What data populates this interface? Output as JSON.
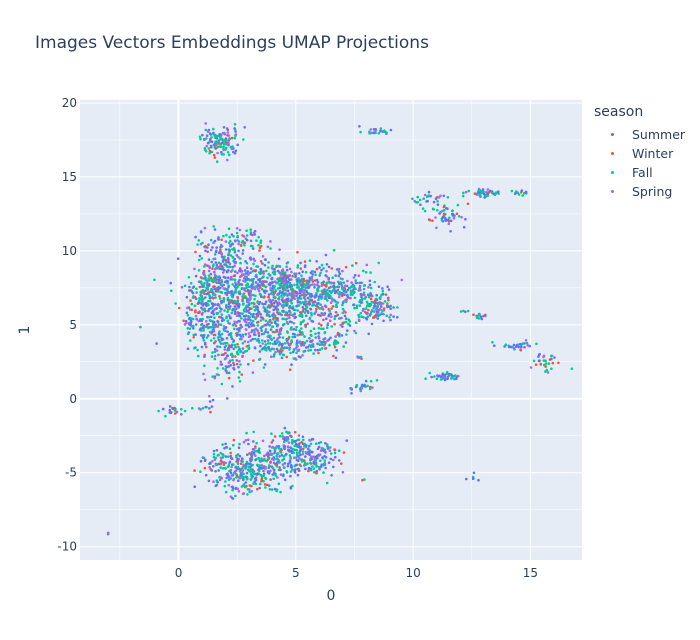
{
  "chart_data": {
    "type": "scatter",
    "title": "Images Vectors Embeddings UMAP Projections",
    "xlabel": "0",
    "ylabel": "1",
    "xlim": [
      -4.2,
      17.2
    ],
    "ylim": [
      -10.9,
      20.2
    ],
    "xticks": [
      0,
      5,
      10,
      15
    ],
    "yticks": [
      -10,
      -5,
      0,
      5,
      10,
      15,
      20
    ],
    "grid": true,
    "legend_title": "season",
    "legend_position": "right",
    "series": [
      {
        "name": "Summer",
        "color": "#636efa"
      },
      {
        "name": "Winter",
        "color": "#EF553B"
      },
      {
        "name": "Fall",
        "color": "#00cc96"
      },
      {
        "name": "Spring",
        "color": "#ab63fa"
      }
    ],
    "clusters": [
      {
        "x": 2.8,
        "y": 6.2,
        "sx": 1.1,
        "sy": 1.6,
        "n": 520
      },
      {
        "x": 5.0,
        "y": 6.5,
        "sx": 1.2,
        "sy": 1.3,
        "n": 500
      },
      {
        "x": 4.5,
        "y": 8.0,
        "sx": 1.6,
        "sy": 0.6,
        "n": 260
      },
      {
        "x": 1.2,
        "y": 5.4,
        "sx": 0.5,
        "sy": 1.0,
        "n": 150
      },
      {
        "x": 1.4,
        "y": 7.4,
        "sx": 0.5,
        "sy": 0.7,
        "n": 110
      },
      {
        "x": 2.2,
        "y": 10.5,
        "sx": 0.7,
        "sy": 0.6,
        "n": 110
      },
      {
        "x": 1.8,
        "y": 9.0,
        "sx": 0.5,
        "sy": 0.5,
        "n": 70
      },
      {
        "x": 2.2,
        "y": 3.0,
        "sx": 0.6,
        "sy": 1.0,
        "n": 120
      },
      {
        "x": 4.8,
        "y": 3.6,
        "sx": 0.8,
        "sy": 0.4,
        "n": 130
      },
      {
        "x": 7.0,
        "y": 7.3,
        "sx": 0.8,
        "sy": 0.4,
        "n": 140
      },
      {
        "x": 8.4,
        "y": 6.2,
        "sx": 0.4,
        "sy": 0.5,
        "n": 110
      },
      {
        "x": 7.0,
        "y": 5.2,
        "sx": 0.6,
        "sy": 0.5,
        "n": 40
      },
      {
        "x": 6.5,
        "y": 4.0,
        "sx": 0.4,
        "sy": 0.4,
        "n": 30
      },
      {
        "x": 1.8,
        "y": 17.4,
        "sx": 0.45,
        "sy": 0.5,
        "n": 130
      },
      {
        "x": 8.3,
        "y": 18.1,
        "sx": 0.25,
        "sy": 0.1,
        "n": 22
      },
      {
        "x": 10.6,
        "y": 13.5,
        "sx": 0.3,
        "sy": 0.2,
        "n": 22
      },
      {
        "x": 11.4,
        "y": 12.5,
        "sx": 0.4,
        "sy": 0.5,
        "n": 55
      },
      {
        "x": 13.1,
        "y": 13.9,
        "sx": 0.4,
        "sy": 0.1,
        "n": 45
      },
      {
        "x": 14.5,
        "y": 13.9,
        "sx": 0.15,
        "sy": 0.1,
        "n": 12
      },
      {
        "x": 12.9,
        "y": 5.6,
        "sx": 0.2,
        "sy": 0.1,
        "n": 14
      },
      {
        "x": 12.1,
        "y": 5.9,
        "sx": 0.1,
        "sy": 0.05,
        "n": 4
      },
      {
        "x": 14.4,
        "y": 3.6,
        "sx": 0.4,
        "sy": 0.15,
        "n": 30
      },
      {
        "x": 15.7,
        "y": 2.4,
        "sx": 0.25,
        "sy": 0.4,
        "n": 30
      },
      {
        "x": 11.5,
        "y": 1.5,
        "sx": 0.35,
        "sy": 0.15,
        "n": 40
      },
      {
        "x": 7.8,
        "y": 0.8,
        "sx": 0.35,
        "sy": 0.2,
        "n": 24
      },
      {
        "x": 7.7,
        "y": 2.8,
        "sx": 0.1,
        "sy": 0.05,
        "n": 5
      },
      {
        "x": -0.3,
        "y": -0.8,
        "sx": 0.3,
        "sy": 0.2,
        "n": 18
      },
      {
        "x": 1.3,
        "y": -0.3,
        "sx": 0.15,
        "sy": 0.25,
        "n": 8
      },
      {
        "x": 0.9,
        "y": -0.7,
        "sx": 0.15,
        "sy": 0.05,
        "n": 5
      },
      {
        "x": 3.5,
        "y": -4.3,
        "sx": 1.2,
        "sy": 0.8,
        "n": 360
      },
      {
        "x": 5.4,
        "y": -3.5,
        "sx": 0.7,
        "sy": 0.5,
        "n": 110
      },
      {
        "x": 2.7,
        "y": -5.5,
        "sx": 0.6,
        "sy": 0.6,
        "n": 110
      },
      {
        "x": 6.0,
        "y": -4.4,
        "sx": 0.5,
        "sy": 0.3,
        "n": 40
      },
      {
        "x": 4.6,
        "y": -2.5,
        "sx": 0.2,
        "sy": 0.3,
        "n": 15
      },
      {
        "x": 1.5,
        "y": -4.4,
        "sx": 0.2,
        "sy": 0.2,
        "n": 12
      },
      {
        "x": 12.6,
        "y": -5.2,
        "sx": 0.1,
        "sy": 0.15,
        "n": 6
      },
      {
        "x": 7.9,
        "y": -5.5,
        "sx": 0.03,
        "sy": 0.03,
        "n": 2
      },
      {
        "x": -3.0,
        "y": -9.1,
        "sx": 0.05,
        "sy": 0.05,
        "n": 3
      }
    ]
  }
}
